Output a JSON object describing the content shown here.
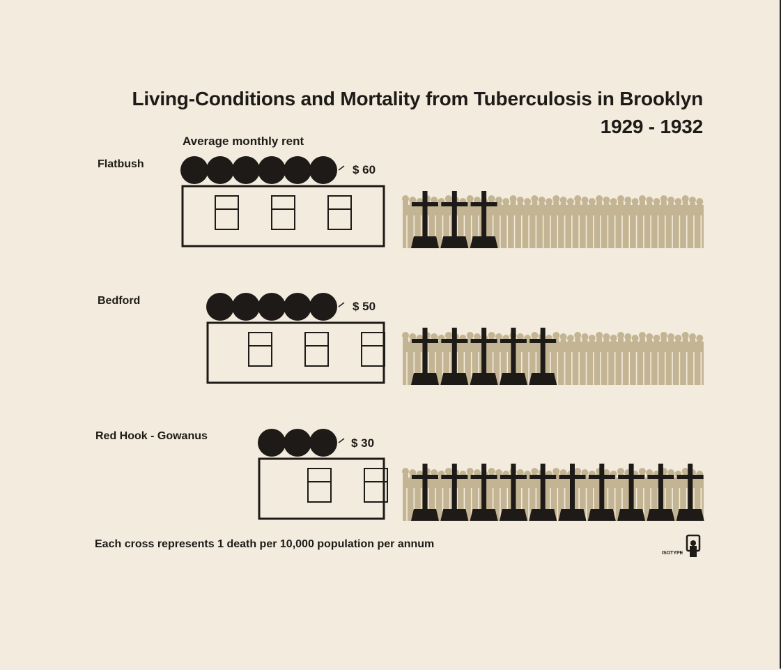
{
  "chart_data": {
    "type": "pictogram",
    "title": "Living-Conditions and Mortality from Tuberculosis in Brooklyn",
    "subtitle": "1929 - 1932",
    "rent_label": "Average monthly rent",
    "categories": [
      "Flatbush",
      "Bedford",
      "Red Hook - Gowanus"
    ],
    "series": [
      {
        "name": "Average monthly rent",
        "values": [
          60,
          50,
          30
        ],
        "labels": [
          "$ 60",
          "$ 50",
          "$ 30"
        ]
      },
      {
        "name": "Deaths per 10,000 population per annum",
        "values": [
          3,
          5,
          10
        ]
      }
    ],
    "footnote": "Each cross represents 1 death per 10,000 population per annum",
    "brand": "ISOTYPE",
    "colors": {
      "ink": "#1d1a17",
      "population": "#c3b593",
      "background": "#f3ebdd"
    }
  }
}
